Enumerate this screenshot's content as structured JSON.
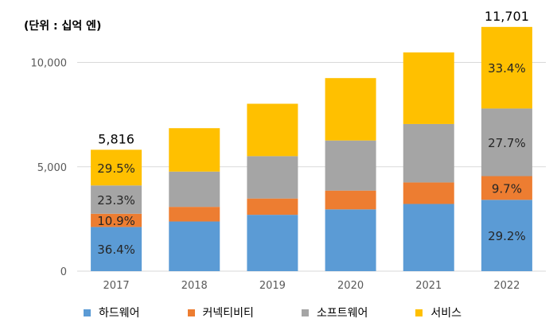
{
  "unit_label": "(단위 : 십억 엔)",
  "chart_data": {
    "type": "bar",
    "stacked": true,
    "categories": [
      "2017",
      "2018",
      "2019",
      "2020",
      "2021",
      "2022"
    ],
    "totals": [
      5816,
      6850,
      8020,
      9250,
      10480,
      11701
    ],
    "total_labels": [
      "5,816",
      "",
      "",
      "",
      "",
      "11,701"
    ],
    "ylim": [
      0,
      12000
    ],
    "yticks": [
      0,
      5000,
      10000
    ],
    "ytick_labels": [
      "0",
      "5,000",
      "10,000"
    ],
    "grid": true,
    "legend_position": "bottom",
    "series": [
      {
        "name": "하드웨어",
        "color": "#5B9BD5",
        "values": [
          2117,
          2380,
          2700,
          2960,
          3220,
          3417
        ],
        "labels": [
          "36.4%",
          "",
          "",
          "",
          "",
          "29.2%"
        ]
      },
      {
        "name": "커넥티비티",
        "color": "#ED7D31",
        "values": [
          634,
          700,
          780,
          900,
          1030,
          1135
        ],
        "labels": [
          "10.9%",
          "",
          "",
          "",
          "",
          "9.7%"
        ]
      },
      {
        "name": "소프트웨어",
        "color": "#A5A5A5",
        "values": [
          1355,
          1690,
          2030,
          2400,
          2800,
          3241
        ],
        "labels": [
          "23.3%",
          "",
          "",
          "",
          "",
          "27.7%"
        ]
      },
      {
        "name": "서비스",
        "color": "#FFC000",
        "values": [
          1710,
          2080,
          2510,
          2990,
          3430,
          3908
        ],
        "labels": [
          "29.5%",
          "",
          "",
          "",
          "",
          "33.4%"
        ]
      }
    ]
  }
}
